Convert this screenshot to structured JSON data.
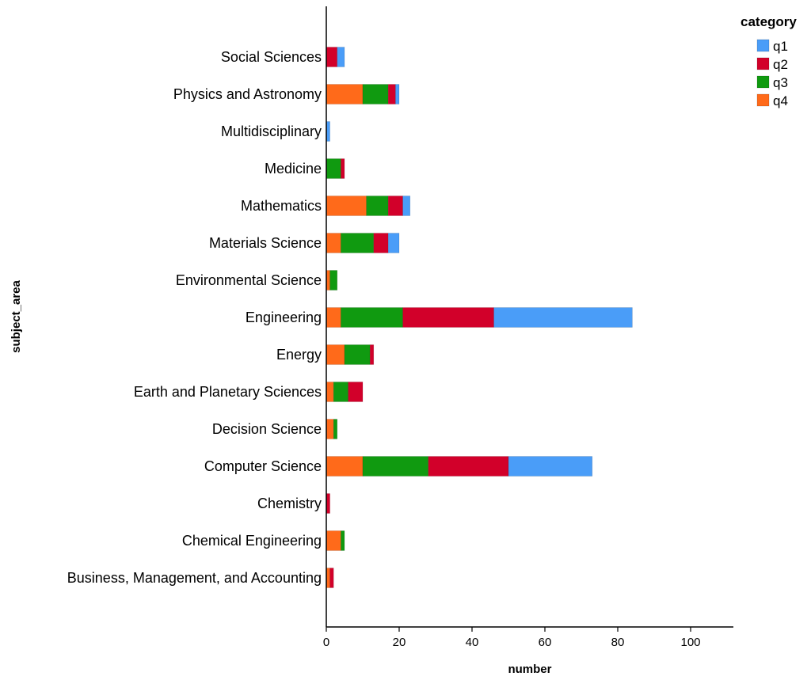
{
  "chart_data": {
    "type": "bar",
    "orientation": "horizontal",
    "stacked": true,
    "xlabel": "number",
    "ylabel": "subject_area",
    "xlim": [
      0,
      110
    ],
    "xticks": [
      0,
      20,
      40,
      60,
      80,
      100
    ],
    "grid": false,
    "legend_title": "category",
    "legend_position": "top-right",
    "categories": [
      "Social Sciences",
      "Physics and Astronomy",
      "Multidisciplinary",
      "Medicine",
      "Mathematics",
      "Materials Science",
      "Environmental Science",
      "Engineering",
      "Energy",
      "Earth and Planetary Sciences",
      "Decision Science",
      "Computer Science",
      "Chemistry",
      "Chemical Engineering",
      "Business, Management, and Accounting"
    ],
    "series": [
      {
        "name": "q4",
        "color": "#ff6a1a",
        "values": [
          0,
          10,
          0,
          0,
          11,
          4,
          1,
          4,
          5,
          2,
          2,
          10,
          0,
          4,
          1
        ]
      },
      {
        "name": "q3",
        "color": "#109a10",
        "values": [
          0,
          7,
          0,
          4,
          6,
          9,
          2,
          17,
          7,
          4,
          1,
          18,
          0,
          1,
          0
        ]
      },
      {
        "name": "q2",
        "color": "#d2002a",
        "values": [
          3,
          2,
          0,
          1,
          4,
          4,
          0,
          25,
          1,
          4,
          0,
          22,
          1,
          0,
          1
        ]
      },
      {
        "name": "q1",
        "color": "#4a9df8",
        "values": [
          2,
          1,
          1,
          0,
          2,
          3,
          0,
          38,
          0,
          0,
          0,
          23,
          0,
          0,
          0
        ]
      }
    ],
    "legend_order": [
      "q1",
      "q2",
      "q3",
      "q4"
    ]
  }
}
